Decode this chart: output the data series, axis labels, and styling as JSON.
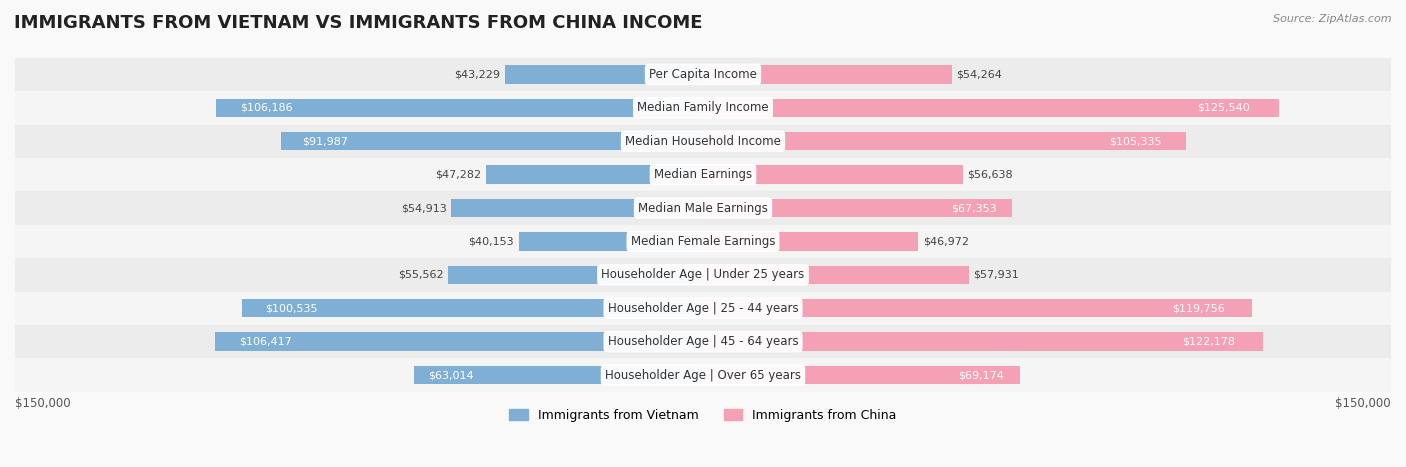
{
  "title": "IMMIGRANTS FROM VIETNAM VS IMMIGRANTS FROM CHINA INCOME",
  "source": "Source: ZipAtlas.com",
  "categories": [
    "Per Capita Income",
    "Median Family Income",
    "Median Household Income",
    "Median Earnings",
    "Median Male Earnings",
    "Median Female Earnings",
    "Householder Age | Under 25 years",
    "Householder Age | 25 - 44 years",
    "Householder Age | 45 - 64 years",
    "Householder Age | Over 65 years"
  ],
  "vietnam_values": [
    43229,
    106186,
    91987,
    47282,
    54913,
    40153,
    55562,
    100535,
    106417,
    63014
  ],
  "china_values": [
    54264,
    125540,
    105335,
    56638,
    67353,
    46972,
    57931,
    119756,
    122178,
    69174
  ],
  "vietnam_color": "#7fafd4",
  "china_color": "#f4a0b5",
  "vietnam_label": "Immigrants from Vietnam",
  "china_label": "Immigrants from China",
  "max_value": 150000,
  "background_color": "#f5f5f5",
  "row_bg_color": "#efefef",
  "bar_row_bg": "#e8e8e8",
  "title_fontsize": 13,
  "label_fontsize": 8.5,
  "value_fontsize": 8,
  "legend_fontsize": 9,
  "axis_label_fontsize": 8.5
}
